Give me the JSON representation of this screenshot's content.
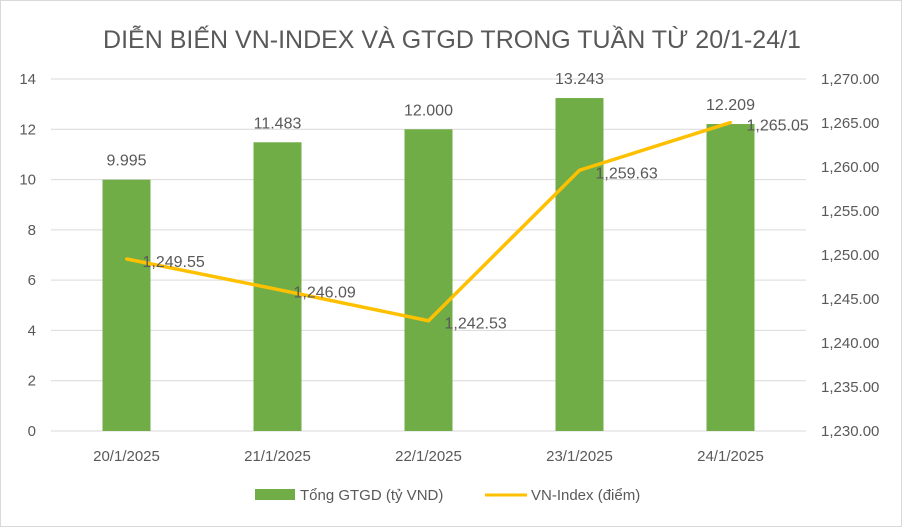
{
  "chart_data": {
    "type": "bar+line",
    "title": "DIỄN BIẾN VN-INDEX VÀ GTGD TRONG TUẦN TỪ 20/1-24/1",
    "categories": [
      "20/1/2025",
      "21/1/2025",
      "22/1/2025",
      "23/1/2025",
      "24/1/2025"
    ],
    "series": [
      {
        "name": "Tổng GTGD (tỷ VND)",
        "type": "bar",
        "axis": "left",
        "color": "#70ad47",
        "values": [
          9.995,
          11.483,
          12.0,
          13.243,
          12.209
        ],
        "labels": [
          "9.995",
          "11.483",
          "12.000",
          "13.243",
          "12.209"
        ]
      },
      {
        "name": "VN-Index (điểm)",
        "type": "line",
        "axis": "right",
        "color": "#ffc000",
        "values": [
          1249.55,
          1246.09,
          1242.53,
          1259.63,
          1265.05
        ],
        "labels": [
          "1,249.55",
          "1,246.09",
          "1,242.53",
          "1,259.63",
          "1,265.05"
        ]
      }
    ],
    "y_left": {
      "min": 0,
      "max": 14,
      "ticks": [
        "0",
        "2",
        "4",
        "6",
        "8",
        "10",
        "12",
        "14"
      ]
    },
    "y_right": {
      "min": 1230,
      "max": 1270,
      "ticks": [
        "1,230.00",
        "1,235.00",
        "1,240.00",
        "1,245.00",
        "1,250.00",
        "1,255.00",
        "1,260.00",
        "1,265.00",
        "1,270.00"
      ]
    },
    "grid": true,
    "legend": "bottom"
  }
}
